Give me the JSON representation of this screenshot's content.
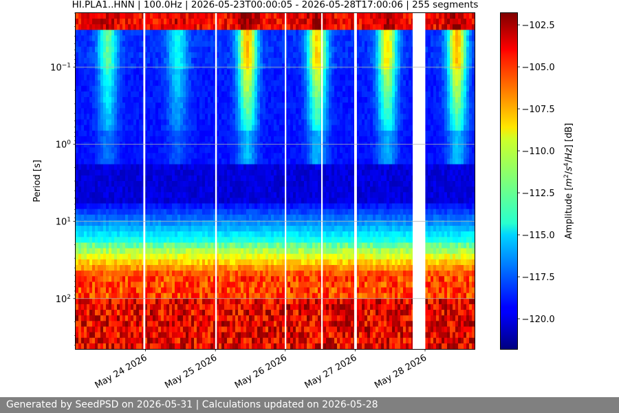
{
  "chart_data": {
    "type": "heatmap",
    "title": "HI.PLA1..HNN | 100.0Hz | 2026-05-23T00:00:05 - 2026-05-28T17:00:06 | 255 segments",
    "ylabel": "Period [s]",
    "colorbar_label_parts": [
      "Amplitude [",
      "m",
      "2",
      "/",
      "s",
      "4",
      "/",
      "Hz",
      "] [dB]"
    ],
    "y_scale": "log",
    "y_inverted": true,
    "ylim_seconds": [
      0.02,
      450
    ],
    "y_ticks": [
      {
        "value": 0.1,
        "base": "10",
        "exp": "−1"
      },
      {
        "value": 1,
        "base": "10",
        "exp": "0"
      },
      {
        "value": 10,
        "base": "10",
        "exp": "1"
      },
      {
        "value": 100,
        "base": "10",
        "exp": "2"
      }
    ],
    "x_range": [
      "2026-05-23T00:00:05",
      "2026-05-28T17:00:06"
    ],
    "x_ticks": [
      {
        "label": "May 24 2026",
        "date": "2026-05-24"
      },
      {
        "label": "May 25 2026",
        "date": "2026-05-25"
      },
      {
        "label": "May 26 2026",
        "date": "2026-05-26"
      },
      {
        "label": "May 27 2026",
        "date": "2026-05-27"
      },
      {
        "label": "May 28 2026",
        "date": "2026-05-28"
      }
    ],
    "data_gaps": [
      {
        "start": "2026-05-23T23:15",
        "end": "2026-05-23T23:55"
      },
      {
        "start": "2026-05-24T23:55",
        "end": "2026-05-25T00:30"
      },
      {
        "start": "2026-05-25T23:50",
        "end": "2026-05-26T00:20"
      },
      {
        "start": "2026-05-26T12:20",
        "end": "2026-05-26T12:50"
      },
      {
        "start": "2026-05-26T23:40",
        "end": "2026-05-27T00:35"
      },
      {
        "start": "2026-05-27T19:45",
        "end": "2026-05-28T00:05"
      }
    ],
    "colorbar": {
      "colormap": "jet",
      "vmin": -121.8,
      "vmax": -101.8,
      "ticks": [
        "-102.5",
        "-105.0",
        "-107.5",
        "-110.0",
        "-112.5",
        "-115.0",
        "-117.5",
        "-120.0"
      ]
    },
    "grid": true
  },
  "footer": {
    "text": "Generated by SeedPSD on 2026-05-31 | Calculations updated on 2026-05-28"
  }
}
